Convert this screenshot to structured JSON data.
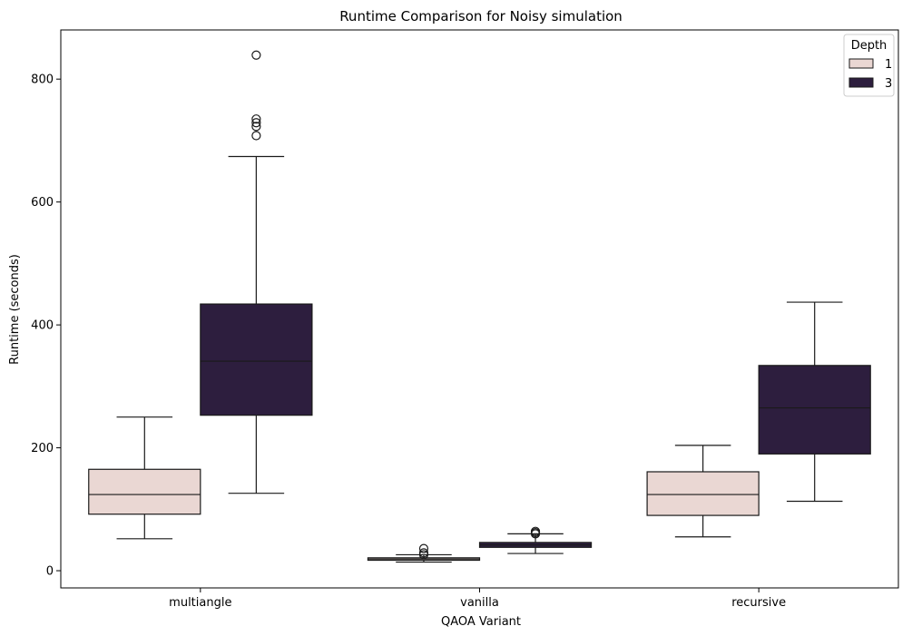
{
  "chart_data": {
    "type": "box",
    "title": "Runtime Comparison for Noisy simulation",
    "xlabel": "QAOA Variant",
    "ylabel": "Runtime (seconds)",
    "categories": [
      "multiangle",
      "vanilla",
      "recursive"
    ],
    "ylim": [
      -28,
      880
    ],
    "yticks": [
      0,
      200,
      400,
      600,
      800
    ],
    "grid": false,
    "legend": {
      "title": "Depth",
      "position": "top-right",
      "entries": [
        "1",
        "3"
      ]
    },
    "series": [
      {
        "name": "1",
        "color": "#ead7d3",
        "boxes": [
          {
            "min": 52,
            "q1": 92,
            "median": 124,
            "q3": 165,
            "max": 250,
            "outliers": []
          },
          {
            "min": 14,
            "q1": 17,
            "median": 19,
            "q3": 21,
            "max": 26,
            "outliers": [
              26,
              29,
              36
            ]
          },
          {
            "min": 55,
            "q1": 90,
            "median": 124,
            "q3": 161,
            "max": 204,
            "outliers": []
          }
        ]
      },
      {
        "name": "3",
        "color": "#2d1e3e",
        "boxes": [
          {
            "min": 126,
            "q1": 253,
            "median": 341,
            "q3": 434,
            "max": 674,
            "outliers": [
              708,
              723,
              729,
              735,
              839
            ]
          },
          {
            "min": 28,
            "q1": 38,
            "median": 42,
            "q3": 46,
            "max": 60,
            "outliers": [
              60,
              62,
              64
            ]
          },
          {
            "min": 113,
            "q1": 190,
            "median": 265,
            "q3": 334,
            "max": 437,
            "outliers": []
          }
        ]
      }
    ]
  }
}
